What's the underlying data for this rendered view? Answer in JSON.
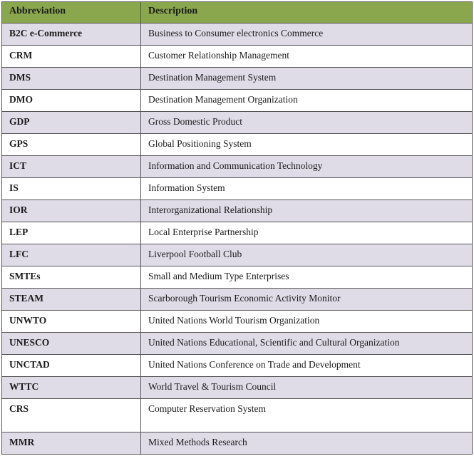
{
  "table": {
    "headers": {
      "abbrev": "Abbreviation",
      "desc": "Description"
    },
    "rows": [
      {
        "abbrev": "B2C e-Commerce",
        "desc": "Business to Consumer electronics Commerce"
      },
      {
        "abbrev": "CRM",
        "desc": "Customer Relationship Management"
      },
      {
        "abbrev": "DMS",
        "desc": "Destination Management System"
      },
      {
        "abbrev": "DMO",
        "desc": "Destination Management Organization"
      },
      {
        "abbrev": "GDP",
        "desc": "Gross Domestic Product"
      },
      {
        "abbrev": "GPS",
        "desc": "Global Positioning System"
      },
      {
        "abbrev": "ICT",
        "desc": "Information and Communication Technology"
      },
      {
        "abbrev": "IS",
        "desc": "Information System"
      },
      {
        "abbrev": "IOR",
        "desc": "Interorganizational Relationship"
      },
      {
        "abbrev": "LEP",
        "desc": "Local Enterprise Partnership"
      },
      {
        "abbrev": "LFC",
        "desc": "Liverpool Football Club"
      },
      {
        "abbrev": "SMTEs",
        "desc": "Small and Medium Type Enterprises"
      },
      {
        "abbrev": "STEAM",
        "desc": "Scarborough Tourism Economic Activity Monitor"
      },
      {
        "abbrev": "UNWTO",
        "desc": "United Nations World Tourism Organization"
      },
      {
        "abbrev": "UNESCO",
        "desc": "United Nations Educational, Scientific and Cultural Organization"
      },
      {
        "abbrev": "UNCTAD",
        "desc": "United Nations Conference on Trade and Development"
      },
      {
        "abbrev": "WTTC",
        "desc": "World Travel & Tourism Council"
      },
      {
        "abbrev": "CRS",
        "desc": "Computer Reservation System"
      },
      {
        "abbrev": "MMR",
        "desc": "Mixed Methods Research"
      }
    ],
    "tall_rows": [
      17
    ]
  },
  "colors": {
    "header_bg": "#8aa74d",
    "odd_row_bg": "#dfdce8",
    "even_row_bg": "#ffffff",
    "border": "#555555",
    "text": "#1a1a1a"
  }
}
